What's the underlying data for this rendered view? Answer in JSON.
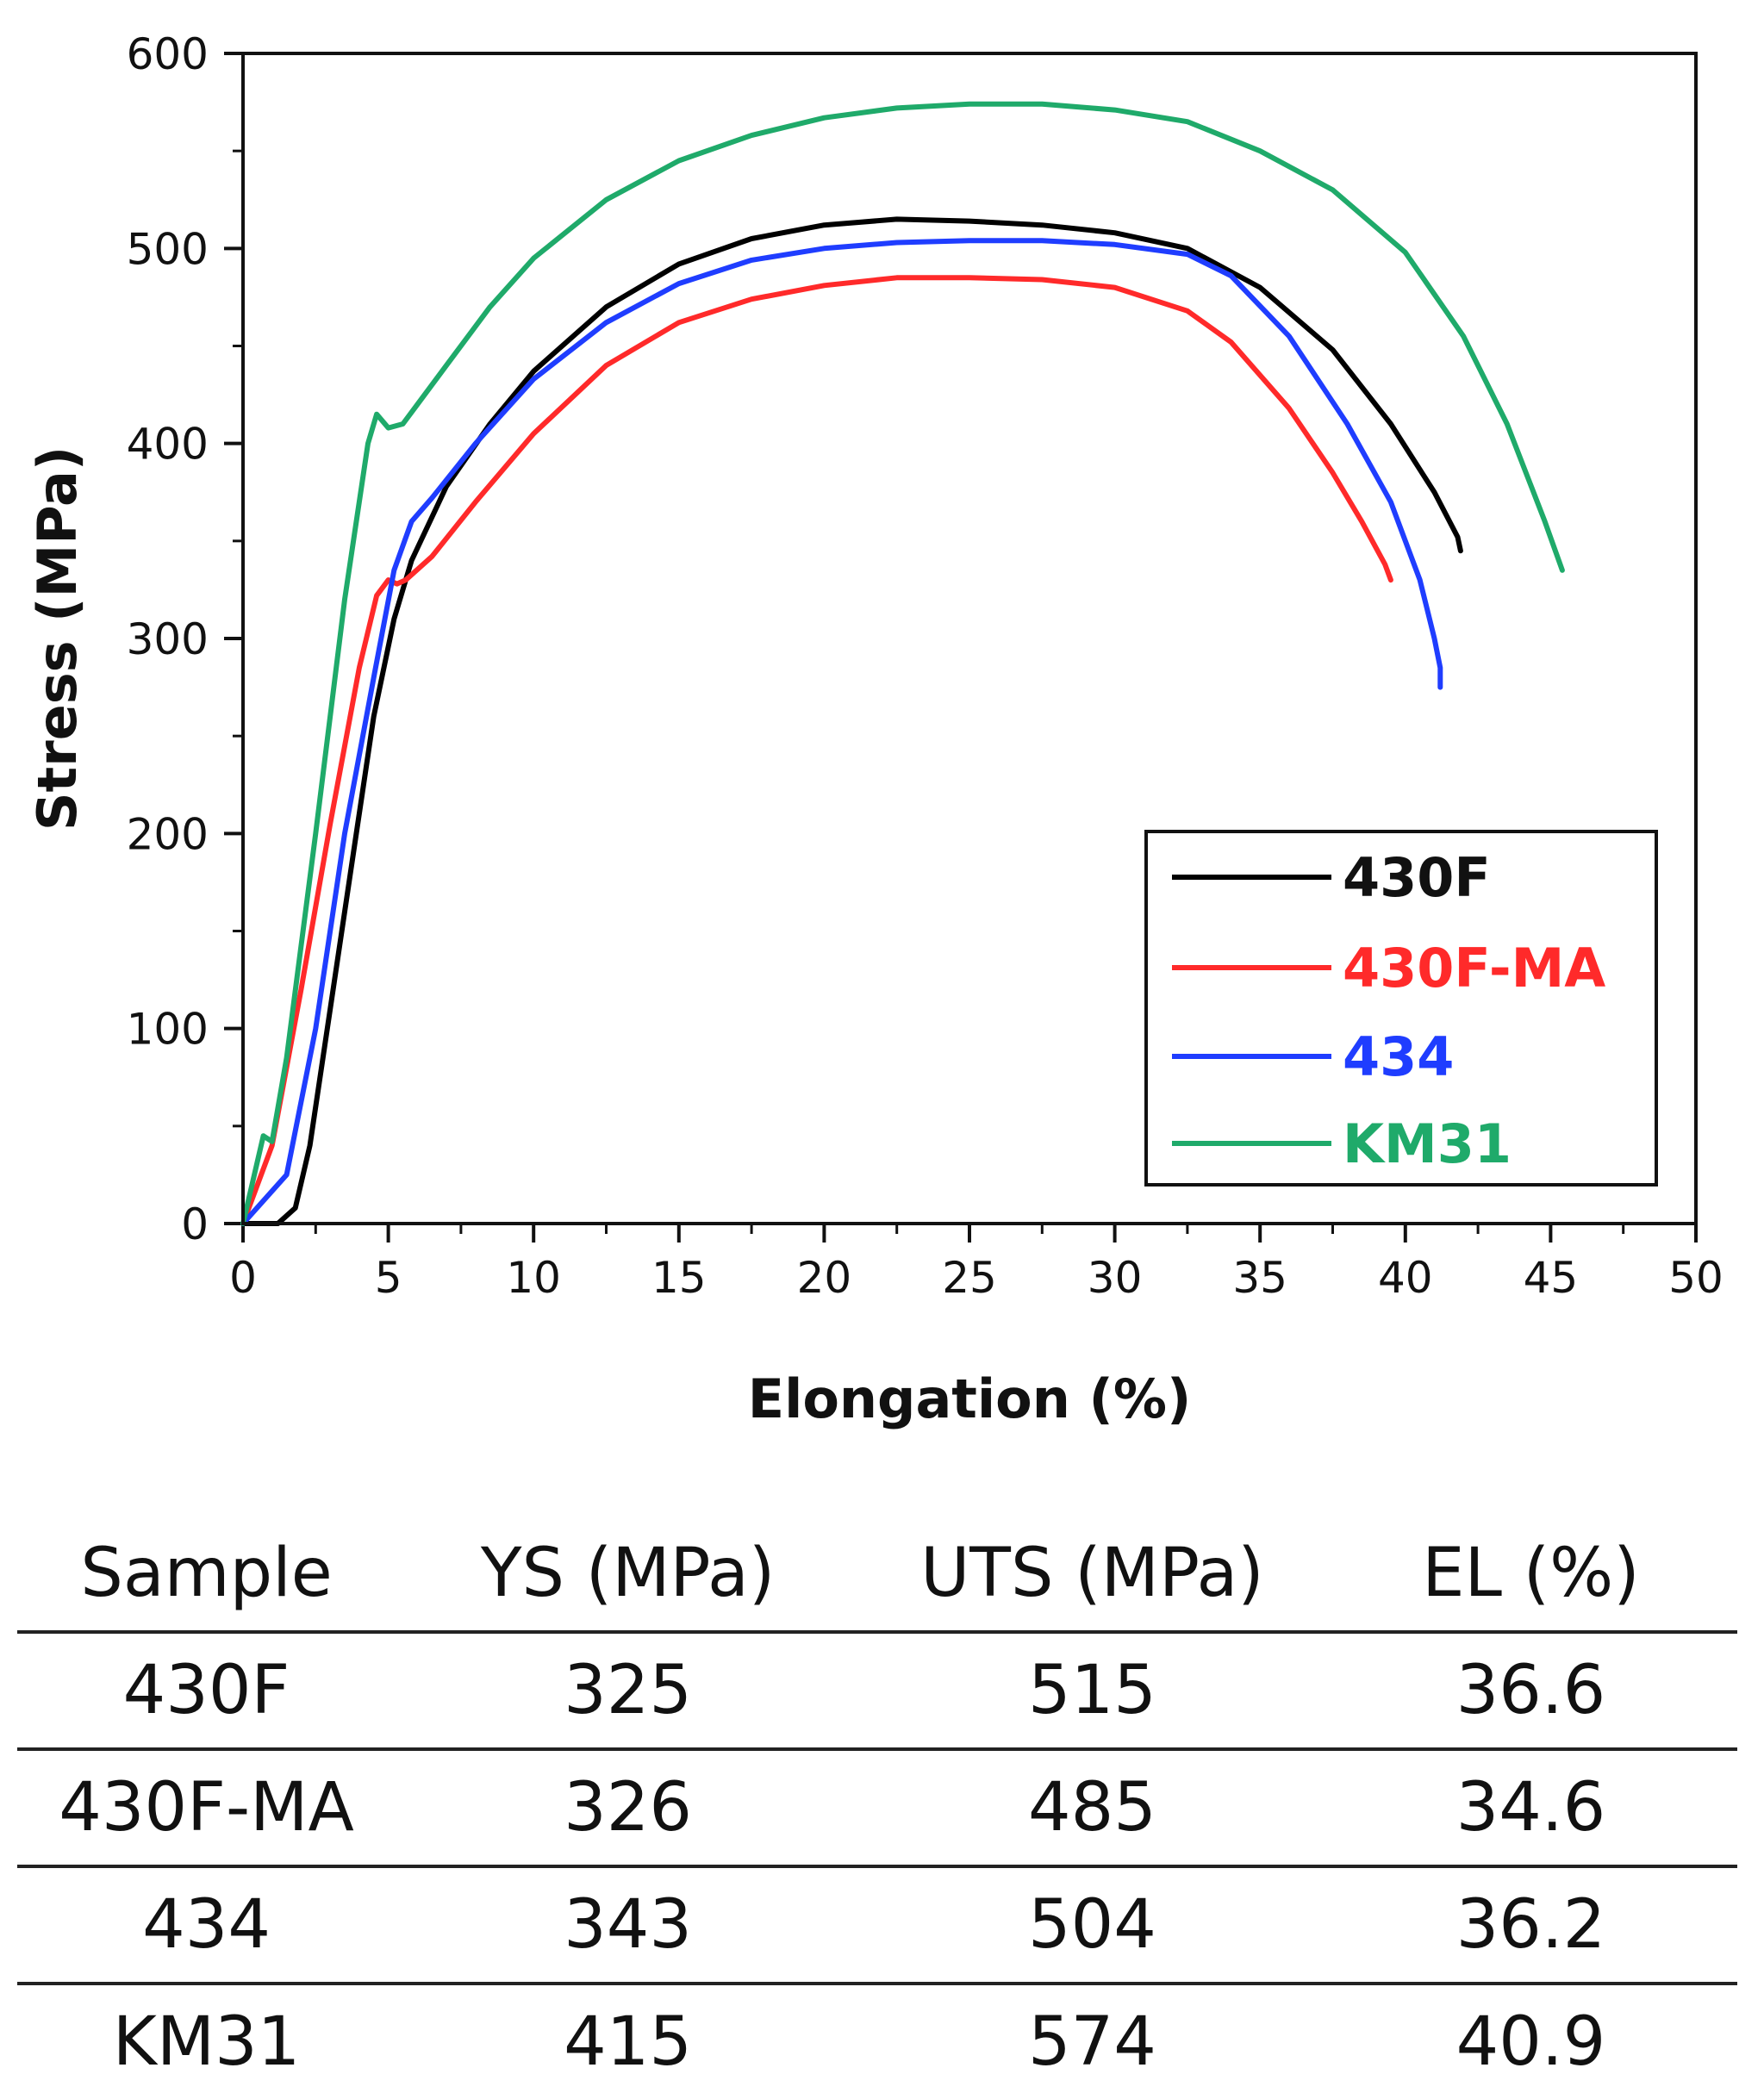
{
  "chart_data": {
    "type": "line",
    "xlabel": "Elongation (%)",
    "ylabel": "Stress (MPa)",
    "xlim": [
      0,
      50
    ],
    "ylim": [
      0,
      600
    ],
    "xticks": [
      0,
      5,
      10,
      15,
      20,
      25,
      30,
      35,
      40,
      45,
      50
    ],
    "yticks": [
      0,
      100,
      200,
      300,
      400,
      500,
      600
    ],
    "legend_position": "bottom-right",
    "series": [
      {
        "name": "430F",
        "color": "#000000",
        "x": [
          0,
          1.2,
          1.8,
          2.3,
          3.0,
          3.8,
          4.5,
          5.2,
          5.8,
          7.0,
          8.5,
          10,
          12.5,
          15,
          17.5,
          20,
          22.5,
          25,
          27.5,
          30,
          32.5,
          35,
          37.5,
          39.5,
          41,
          41.8,
          41.9
        ],
        "y": [
          0,
          0,
          8,
          40,
          110,
          190,
          260,
          310,
          340,
          378,
          410,
          437,
          470,
          492,
          505,
          512,
          515,
          514,
          512,
          508,
          500,
          480,
          448,
          410,
          375,
          352,
          345
        ]
      },
      {
        "name": "430F-MA",
        "color": "#ff2a2a",
        "x": [
          0,
          1.0,
          2.0,
          3.0,
          4.0,
          4.6,
          5.0,
          5.3,
          5.6,
          6.5,
          8.0,
          10,
          12.5,
          15,
          17.5,
          20,
          22.5,
          25,
          27.5,
          30,
          32.5,
          34,
          36,
          37.5,
          38.5,
          39.3,
          39.5
        ],
        "y": [
          0,
          40,
          120,
          205,
          285,
          322,
          330,
          328,
          330,
          342,
          370,
          405,
          440,
          462,
          474,
          481,
          485,
          485,
          484,
          480,
          468,
          452,
          418,
          385,
          360,
          338,
          330
        ]
      },
      {
        "name": "434",
        "color": "#1f3dff",
        "x": [
          0,
          1.5,
          2.5,
          3.5,
          4.5,
          5.2,
          5.8,
          6.5,
          8.0,
          10,
          12.5,
          15,
          17.5,
          20,
          22.5,
          25,
          27.5,
          30,
          32.5,
          34,
          36,
          38,
          39.5,
          40.5,
          41.0,
          41.2,
          41.2
        ],
        "y": [
          0,
          25,
          100,
          200,
          280,
          335,
          360,
          372,
          400,
          433,
          462,
          482,
          494,
          500,
          503,
          504,
          504,
          502,
          497,
          486,
          455,
          410,
          370,
          330,
          300,
          285,
          275
        ]
      },
      {
        "name": "KM31",
        "color": "#1faa6a",
        "x": [
          0,
          0.7,
          1.0,
          1.5,
          2.5,
          3.5,
          4.3,
          4.6,
          5.0,
          5.5,
          6.0,
          7.0,
          8.5,
          10,
          12.5,
          15,
          17.5,
          20,
          22.5,
          25,
          27.5,
          30,
          32.5,
          35,
          37.5,
          40,
          42,
          43.5,
          44.8,
          45.4
        ],
        "y": [
          0,
          45,
          42,
          85,
          200,
          320,
          400,
          415,
          408,
          410,
          420,
          440,
          470,
          495,
          525,
          545,
          558,
          567,
          572,
          574,
          574,
          571,
          565,
          550,
          530,
          498,
          455,
          410,
          360,
          335
        ]
      }
    ]
  },
  "table": {
    "headers": [
      "Sample",
      "YS (MPa)",
      "UTS (MPa)",
      "EL (%)"
    ],
    "rows": [
      [
        "430F",
        "325",
        "515",
        "36.6"
      ],
      [
        "430F-MA",
        "326",
        "485",
        "34.6"
      ],
      [
        "434",
        "343",
        "504",
        "36.2"
      ],
      [
        "KM31",
        "415",
        "574",
        "40.9"
      ]
    ]
  }
}
